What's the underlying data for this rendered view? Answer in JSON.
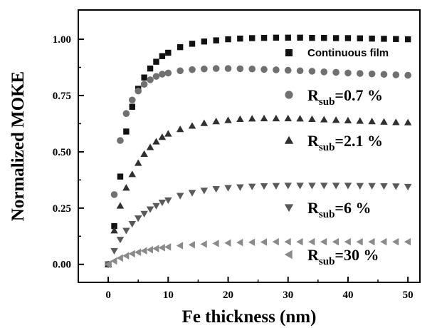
{
  "chart_data": {
    "type": "scatter",
    "xlabel": "Fe thickness (nm)",
    "ylabel": "Normalized MOKE",
    "xlim": [
      -5,
      52
    ],
    "ylim": [
      -0.08,
      1.13
    ],
    "xticks": [
      0,
      10,
      20,
      30,
      40,
      50
    ],
    "xtick_labels": [
      "0",
      "10",
      "20",
      "30",
      "40",
      "50"
    ],
    "yticks": [
      0.0,
      0.25,
      0.5,
      0.75,
      1.0
    ],
    "ytick_labels": [
      "0.00",
      "0.25",
      "0.50",
      "0.75",
      "1.00"
    ],
    "grid": false,
    "legend_position": "right (placed beside each curve)",
    "x": [
      0,
      1,
      2,
      3,
      4,
      5,
      6,
      7,
      8,
      9,
      10,
      12,
      14,
      16,
      18,
      20,
      22,
      24,
      26,
      28,
      30,
      32,
      34,
      36,
      38,
      40,
      42,
      44,
      46,
      48,
      50
    ],
    "series": [
      {
        "name": "Continuous film",
        "marker": "square",
        "color": "#111111",
        "legend": {
          "text": "Continuous film"
        },
        "values": [
          0.0,
          0.17,
          0.39,
          0.59,
          0.7,
          0.78,
          0.83,
          0.87,
          0.9,
          0.925,
          0.94,
          0.965,
          0.98,
          0.99,
          0.995,
          1.0,
          1.003,
          1.005,
          1.006,
          1.007,
          1.007,
          1.007,
          1.006,
          1.006,
          1.005,
          1.005,
          1.004,
          1.003,
          1.002,
          1.001,
          1.0
        ]
      },
      {
        "name": "Rsub=0.7 %",
        "marker": "circle",
        "color": "#707070",
        "legend": {
          "symbol": "R",
          "subscript": "sub",
          "value": "=0.7 %"
        },
        "values": [
          0.0,
          0.31,
          0.55,
          0.67,
          0.73,
          0.77,
          0.8,
          0.82,
          0.835,
          0.845,
          0.85,
          0.86,
          0.865,
          0.868,
          0.87,
          0.87,
          0.869,
          0.868,
          0.866,
          0.864,
          0.862,
          0.86,
          0.858,
          0.855,
          0.853,
          0.85,
          0.848,
          0.846,
          0.844,
          0.842,
          0.84
        ]
      },
      {
        "name": "Rsub=2.1 %",
        "marker": "triangle-up",
        "color": "#303030",
        "legend": {
          "symbol": "R",
          "subscript": "sub",
          "value": "=2.1 %"
        },
        "values": [
          0.0,
          0.15,
          0.26,
          0.34,
          0.4,
          0.45,
          0.49,
          0.52,
          0.545,
          0.565,
          0.58,
          0.6,
          0.615,
          0.627,
          0.635,
          0.64,
          0.645,
          0.647,
          0.648,
          0.648,
          0.648,
          0.647,
          0.645,
          0.643,
          0.641,
          0.639,
          0.637,
          0.635,
          0.633,
          0.631,
          0.63
        ]
      },
      {
        "name": "Rsub=6 %",
        "marker": "triangle-down",
        "color": "#5a5a5a",
        "legend": {
          "symbol": "R",
          "subscript": "sub",
          "value": "=6 %"
        },
        "values": [
          0.0,
          0.06,
          0.11,
          0.15,
          0.18,
          0.205,
          0.225,
          0.245,
          0.26,
          0.275,
          0.285,
          0.305,
          0.318,
          0.328,
          0.335,
          0.34,
          0.343,
          0.346,
          0.348,
          0.349,
          0.35,
          0.35,
          0.35,
          0.35,
          0.35,
          0.35,
          0.349,
          0.349,
          0.348,
          0.347,
          0.345
        ]
      },
      {
        "name": "Rsub=30 %",
        "marker": "triangle-left",
        "color": "#8a8a8a",
        "legend": {
          "symbol": "R",
          "subscript": "sub",
          "value": "=30 %"
        },
        "values": [
          0.0,
          0.015,
          0.028,
          0.038,
          0.047,
          0.054,
          0.06,
          0.065,
          0.07,
          0.074,
          0.077,
          0.083,
          0.087,
          0.09,
          0.093,
          0.095,
          0.097,
          0.098,
          0.099,
          0.1,
          0.1,
          0.1,
          0.1,
          0.1,
          0.1,
          0.1,
          0.1,
          0.1,
          0.1,
          0.1,
          0.1
        ]
      }
    ]
  }
}
